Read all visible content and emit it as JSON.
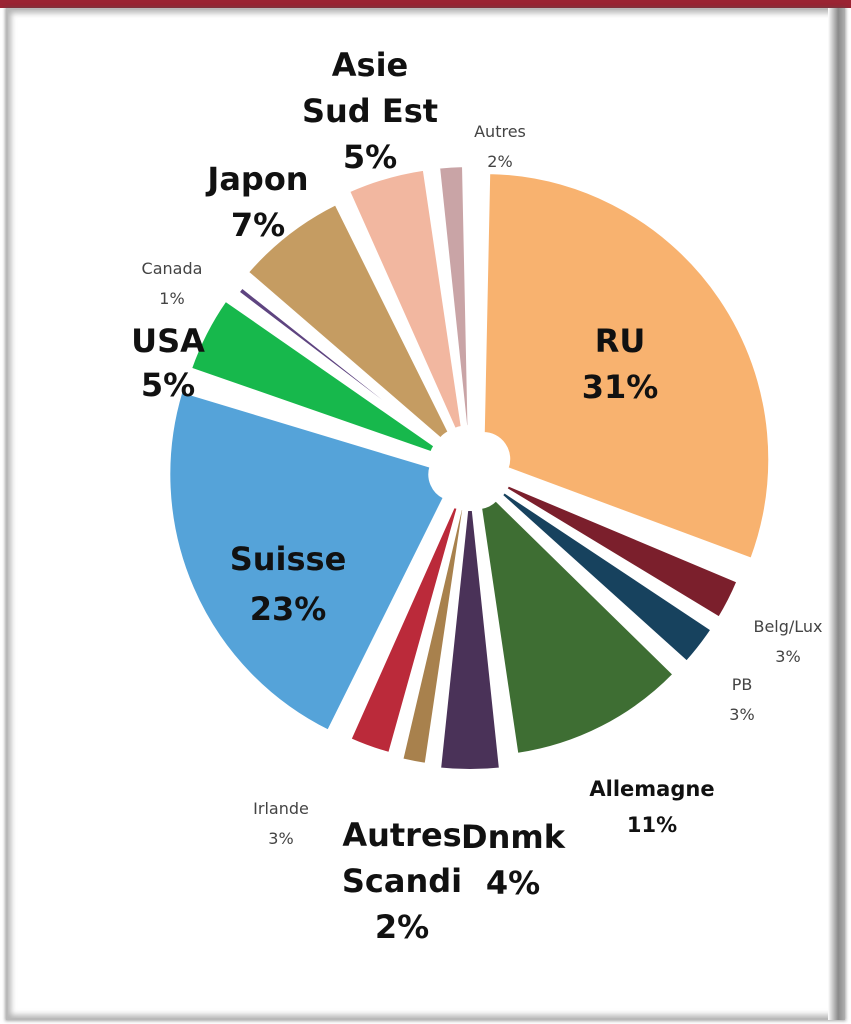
{
  "chart_data": {
    "type": "pie",
    "title": "",
    "slices": [
      {
        "label": "RU",
        "value": 31,
        "value_label": "31%",
        "color": "#F8B26F"
      },
      {
        "label": "Belg/Lux",
        "value": 3,
        "value_label": "3%",
        "color": "#7B1F2C"
      },
      {
        "label": "PB",
        "value": 3,
        "value_label": "3%",
        "color": "#17425E"
      },
      {
        "label": "Allemagne",
        "value": 11,
        "value_label": "11%",
        "color": "#3E6E33"
      },
      {
        "label": "Dnmk",
        "value": 4,
        "value_label": "4%",
        "color": "#4A3258"
      },
      {
        "label": "Autres Scandi",
        "value": 2,
        "value_label": "2%",
        "color": "#A8814D"
      },
      {
        "label": "Irlande",
        "value": 3,
        "value_label": "3%",
        "color": "#BB2A3A"
      },
      {
        "label": "Suisse",
        "value": 23,
        "value_label": "23%",
        "color": "#55A3D9"
      },
      {
        "label": "USA",
        "value": 5,
        "value_label": "5%",
        "color": "#17B84C"
      },
      {
        "label": "Canada",
        "value": 1,
        "value_label": "1%",
        "color": "#5E4480"
      },
      {
        "label": "Japon",
        "value": 7,
        "value_label": "7%",
        "color": "#C59C62"
      },
      {
        "label": "Asie Sud Est",
        "value": 5,
        "value_label": "5%",
        "color": "#F2B7A0"
      },
      {
        "label": "Autres",
        "value": 2,
        "value_label": "2%",
        "color": "#C9A4A6"
      }
    ],
    "labels": [
      {
        "name": "label-ru",
        "lines": [
          "RU",
          "31%"
        ],
        "size": "big"
      },
      {
        "name": "label-suisse",
        "lines": [
          "Suisse",
          "23%"
        ],
        "size": "big"
      },
      {
        "name": "label-allemagne",
        "lines": [
          "Allemagne",
          "11%"
        ],
        "size": "mid"
      },
      {
        "name": "label-usa",
        "lines": [
          "USA",
          "5%"
        ],
        "size": "big"
      },
      {
        "name": "label-japon",
        "lines": [
          "Japon",
          "7%"
        ],
        "size": "big"
      },
      {
        "name": "label-asie",
        "lines": [
          "Asie",
          "Sud Est",
          "5%"
        ],
        "size": "big"
      },
      {
        "name": "label-autres",
        "lines": [
          "Autres",
          "2%"
        ],
        "size": "small"
      },
      {
        "name": "label-canada",
        "lines": [
          "Canada",
          "1%"
        ],
        "size": "small"
      },
      {
        "name": "label-belg",
        "lines": [
          "Belg/Lux",
          "3%"
        ],
        "size": "small"
      },
      {
        "name": "label-pb",
        "lines": [
          "PB",
          "3%"
        ],
        "size": "small"
      },
      {
        "name": "label-irlande",
        "lines": [
          "Irlande",
          "3%"
        ],
        "size": "small"
      },
      {
        "name": "label-autres-scandi",
        "lines": [
          "Autres",
          "Scandi",
          "2%"
        ],
        "size": "big"
      },
      {
        "name": "label-dnmk",
        "lines": [
          "Dnmk",
          "4%"
        ],
        "size": "big"
      }
    ],
    "legend": "none"
  }
}
